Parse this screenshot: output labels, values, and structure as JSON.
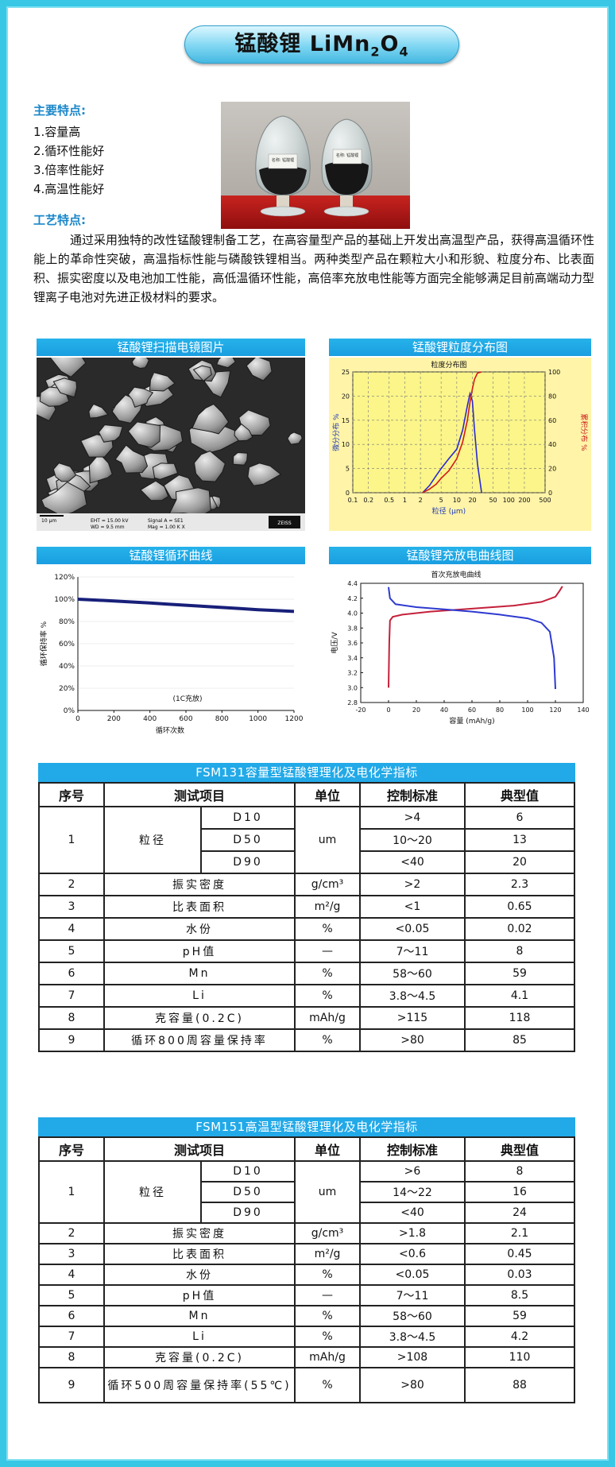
{
  "title": {
    "prefix": "锰酸锂 LiMn",
    "sub1": "2",
    "mid": "O",
    "sub2": "4"
  },
  "features": {
    "heading": "主要特点:",
    "items": [
      "1.容量高",
      "2.循环性能好",
      "3.倍率性能好",
      "4.高温性能好"
    ]
  },
  "process": {
    "heading": "工艺特点:",
    "text": "通过采用独特的改性锰酸锂制备工艺，在高容量型产品的基础上开发出高温型产品，获得高温循环性能上的革命性突破，高温指标性能与磷酸铁锂相当。两种类型产品在颗粒大小和形貌、粒度分布、比表面积、振实密度以及电池加工性能，高低温循环性能，高倍率充放电性能等方面完全能够满足目前高端动力型锂离子电池对先进正极材料的要求。"
  },
  "photo_labels": [
    "名称: 锰酸锂",
    "名称: 锰酸锂"
  ],
  "sem": {
    "caption": "锰酸锂扫描电镜图片",
    "scale": "10 μm",
    "eht": "EHT = 15.00 kV",
    "wd": "WD = 9.5 mm",
    "signal": "Signal A = SE1",
    "mag": "Mag = 1.00 K X",
    "brand": "ZEISS"
  },
  "chart_data": [
    {
      "type": "line",
      "caption": "锰酸锂粒度分布图",
      "title": "粒度分布图",
      "xlabel": "粒径 (μm)",
      "ylabel": "微分分布 %",
      "y2label": "累积分布 %",
      "x_ticks": [
        "0.1",
        "0.2",
        "0.5",
        "1",
        "2",
        "5",
        "10",
        "20",
        "50",
        "100",
        "200",
        "500"
      ],
      "y_ticks": [
        "0",
        "5",
        "10",
        "15",
        "20",
        "25"
      ],
      "y2_ticks": [
        "0",
        "20",
        "40",
        "60",
        "80",
        "100"
      ],
      "xscale": "log",
      "xlim": [
        0.1,
        500
      ],
      "ylim": [
        0,
        25
      ],
      "y2lim": [
        0,
        100
      ],
      "grid": true,
      "series": [
        {
          "axis": "left",
          "color": "#2a2ad0",
          "x": [
            2.2,
            3,
            4,
            5,
            7,
            10,
            13,
            16,
            18,
            20,
            22,
            25,
            30
          ],
          "y": [
            0,
            1.5,
            3.5,
            5,
            7,
            9,
            13,
            18,
            20.5,
            19,
            13,
            6,
            0
          ]
        },
        {
          "axis": "right",
          "color": "#d41a1a",
          "x": [
            2.2,
            3,
            4,
            5,
            7,
            10,
            13,
            16,
            18,
            20,
            22,
            25,
            30
          ],
          "y": [
            0,
            3,
            7,
            12,
            18,
            28,
            42,
            60,
            75,
            86,
            94,
            99,
            100
          ]
        }
      ]
    },
    {
      "type": "line",
      "caption": "锰酸锂循环曲线",
      "xlabel": "循环次数",
      "ylabel": "循环保持率 %",
      "annotation": "(1C充放)",
      "x_ticks": [
        "0",
        "200",
        "400",
        "600",
        "800",
        "1000",
        "1200"
      ],
      "y_ticks": [
        "0%",
        "20%",
        "40%",
        "60%",
        "80%",
        "100%",
        "120%"
      ],
      "xlim": [
        0,
        1200
      ],
      "ylim": [
        0,
        120
      ],
      "grid": true,
      "series": [
        {
          "color": "#18207a",
          "x": [
            0,
            100,
            200,
            300,
            400,
            500,
            600,
            700,
            800,
            900,
            1000,
            1100,
            1200
          ],
          "y": [
            100,
            99.2,
            98.4,
            97.5,
            96.6,
            95.6,
            94.6,
            93.6,
            92.6,
            91.6,
            90.6,
            89.8,
            89
          ]
        }
      ]
    },
    {
      "type": "line",
      "caption": "锰酸锂充放电曲线图",
      "title": "首次充放电曲线",
      "xlabel": "容量 (mAh/g)",
      "ylabel": "电压/V",
      "x_ticks": [
        "-20",
        "0",
        "20",
        "40",
        "60",
        "80",
        "100",
        "120",
        "140"
      ],
      "y_ticks": [
        "2.8",
        "3.0",
        "3.2",
        "3.4",
        "3.6",
        "3.8",
        "4.0",
        "4.2",
        "4.4"
      ],
      "xlim": [
        -20,
        140
      ],
      "ylim": [
        2.8,
        4.4
      ],
      "series": [
        {
          "color": "#c4203a",
          "x": [
            0,
            0.5,
            1,
            3,
            10,
            30,
            60,
            90,
            110,
            120,
            123,
            125
          ],
          "y": [
            3.0,
            3.6,
            3.9,
            3.95,
            3.98,
            4.02,
            4.06,
            4.1,
            4.15,
            4.22,
            4.3,
            4.36
          ]
        },
        {
          "color": "#2e3ad0",
          "x": [
            0,
            1,
            5,
            20,
            40,
            60,
            80,
            100,
            110,
            116,
            119,
            120
          ],
          "y": [
            4.35,
            4.2,
            4.12,
            4.08,
            4.05,
            4.02,
            3.98,
            3.93,
            3.87,
            3.75,
            3.4,
            2.98
          ]
        }
      ]
    }
  ],
  "tables": [
    {
      "caption": "FSM131容量型锰酸锂理化及电化学指标",
      "headers": [
        "序号",
        "测试项目",
        "单位",
        "控制标准",
        "典型值"
      ],
      "particle": {
        "no": "1",
        "label": "粒径",
        "unit": "um",
        "rows": [
          [
            "D10",
            ">4",
            "6"
          ],
          [
            "D50",
            "10～20",
            "13"
          ],
          [
            "D90",
            "<40",
            "20"
          ]
        ]
      },
      "rows": [
        [
          "2",
          "振实密度",
          "g/cm³",
          ">2",
          "2.3"
        ],
        [
          "3",
          "比表面积",
          "m²/g",
          "<1",
          "0.65"
        ],
        [
          "4",
          "水份",
          "%",
          "<0.05",
          "0.02"
        ],
        [
          "5",
          "pH值",
          "—",
          "7～11",
          "8"
        ],
        [
          "6",
          "Mn",
          "%",
          "58～60",
          "59"
        ],
        [
          "7",
          "Li",
          "%",
          "3.8～4.5",
          "4.1"
        ],
        [
          "8",
          "克容量(0.2C)",
          "mAh/g",
          ">115",
          "118"
        ],
        [
          "9",
          "循环800周容量保持率",
          "%",
          ">80",
          "85"
        ]
      ]
    },
    {
      "caption": "FSM151高温型锰酸锂理化及电化学指标",
      "headers": [
        "序号",
        "测试项目",
        "单位",
        "控制标准",
        "典型值"
      ],
      "particle": {
        "no": "1",
        "label": "粒径",
        "unit": "um",
        "rows": [
          [
            "D10",
            ">6",
            "8"
          ],
          [
            "D50",
            "14～22",
            "16"
          ],
          [
            "D90",
            "<40",
            "24"
          ]
        ]
      },
      "rows": [
        [
          "2",
          "振实密度",
          "g/cm³",
          ">1.8",
          "2.1"
        ],
        [
          "3",
          "比表面积",
          "m²/g",
          "<0.6",
          "0.45"
        ],
        [
          "4",
          "水份",
          "%",
          "<0.05",
          "0.03"
        ],
        [
          "5",
          "pH值",
          "—",
          "7～11",
          "8.5"
        ],
        [
          "6",
          "Mn",
          "%",
          "58～60",
          "59"
        ],
        [
          "7",
          "Li",
          "%",
          "3.8～4.5",
          "4.2"
        ],
        [
          "8",
          "克容量(0.2C)",
          "mAh/g",
          ">108",
          "110"
        ],
        [
          "9",
          "循环500周容量保持率(55℃)",
          "%",
          ">80",
          "88"
        ]
      ]
    }
  ]
}
